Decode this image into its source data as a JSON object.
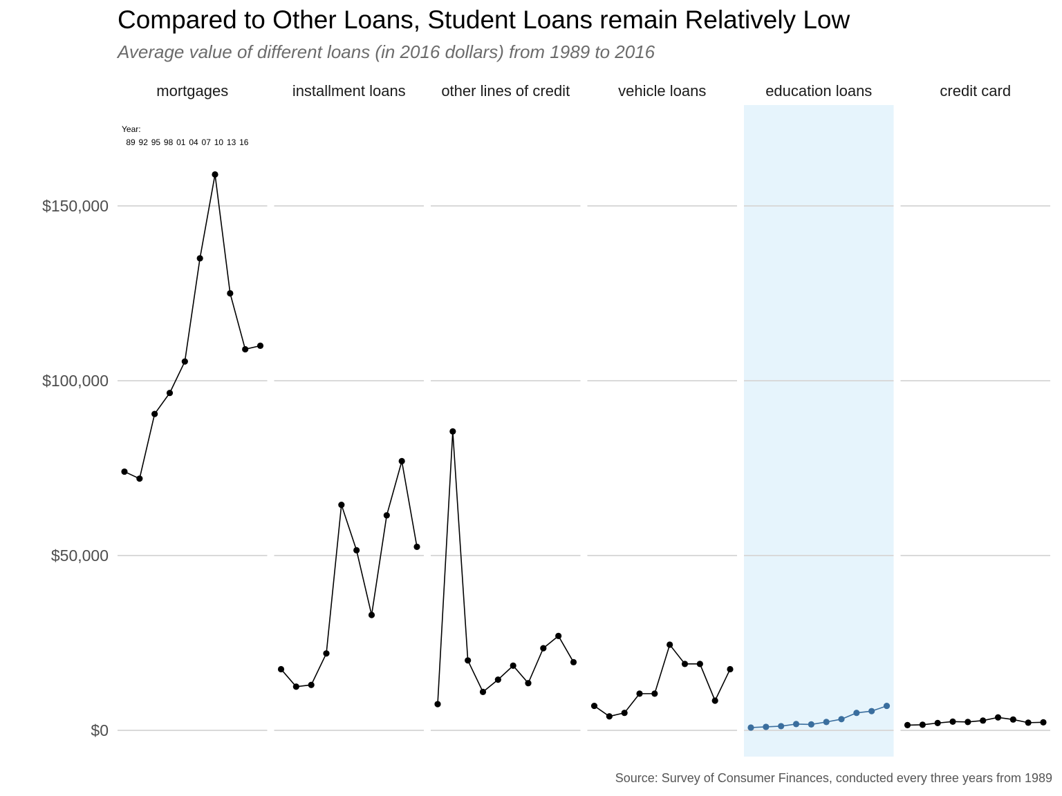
{
  "title": "Compared to Other Loans, Student Loans remain Relatively Low",
  "subtitle": "Average value of different loans (in 2016 dollars) from 1989 to 2016",
  "caption": "Source: Survey of Consumer Finances, conducted every three years from 1989",
  "chart_data": {
    "type": "line",
    "x": [
      1989,
      1992,
      1995,
      1998,
      2001,
      2004,
      2007,
      2010,
      2013,
      2016
    ],
    "ylim": [
      -7500,
      175000
    ],
    "yticks": [
      0,
      50000,
      100000,
      150000
    ],
    "ytick_labels": [
      "$0",
      "$50,000",
      "$100,000",
      "$150,000"
    ],
    "grid": "horizontal major only",
    "year_annotation": {
      "label": "Year:",
      "years": [
        "89",
        "92",
        "95",
        "98",
        "01",
        "04",
        "07",
        "10",
        "13",
        "16"
      ]
    },
    "highlight_panel": "education loans",
    "colors": {
      "default_line": "#000000",
      "highlight_line": "#3a6e9e",
      "highlight_bg": "#e6f4fc",
      "grid": "#d9d9d9"
    },
    "panels": [
      {
        "name": "mortgages",
        "values": [
          74000,
          72000,
          90500,
          96500,
          105500,
          135000,
          159000,
          125000,
          109000,
          110000
        ]
      },
      {
        "name": "installment loans",
        "values": [
          17500,
          12500,
          13000,
          22000,
          64500,
          51500,
          33000,
          61500,
          77000,
          52500
        ]
      },
      {
        "name": "other lines of credit",
        "values": [
          7500,
          85500,
          20000,
          11000,
          14500,
          18500,
          13500,
          23500,
          27000,
          19500
        ]
      },
      {
        "name": "vehicle loans",
        "values": [
          7000,
          4000,
          5000,
          10500,
          10500,
          24500,
          19000,
          19000,
          8500,
          17500
        ]
      },
      {
        "name": "education loans",
        "values": [
          800,
          1000,
          1200,
          1800,
          1700,
          2400,
          3200,
          5000,
          5500,
          7000
        ]
      },
      {
        "name": "credit card",
        "values": [
          1500,
          1600,
          2100,
          2500,
          2400,
          2800,
          3700,
          3100,
          2200,
          2300
        ]
      }
    ]
  }
}
